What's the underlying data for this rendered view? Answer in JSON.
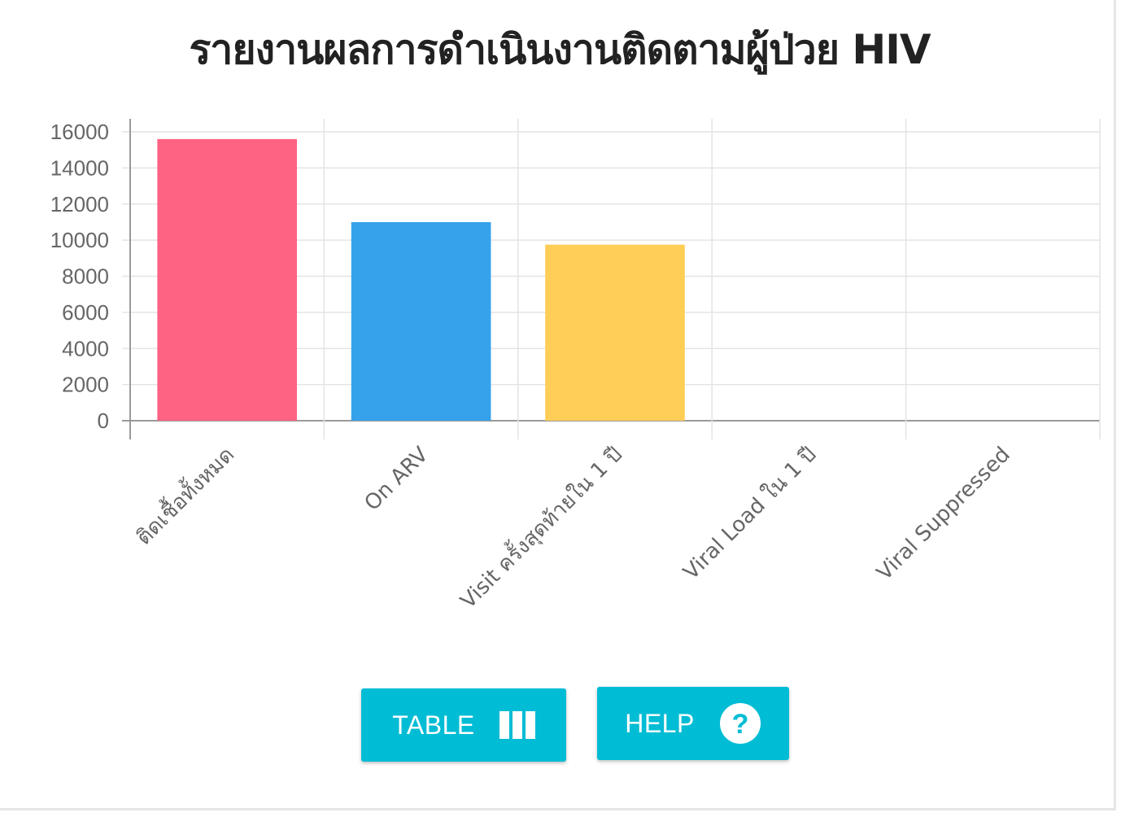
{
  "title": "รายงานผลการดำเนินงานติดตามผู้ป่วย HIV",
  "buttons": {
    "table_label": "TABLE",
    "table_icon": "view-column-icon",
    "help_label": "HELP",
    "help_icon": "help-circle-icon"
  },
  "colors": {
    "accent": "#00bcd4"
  },
  "chart_data": {
    "type": "bar",
    "title": "รายงานผลการดำเนินงานติดตามผู้ป่วย HIV",
    "xlabel": "",
    "ylabel": "",
    "categories": [
      "ติดเชื้อทั้งหมด",
      "On ARV",
      "Visit ครั้งสุดท้ายใน 1 ปี",
      "Viral Load ใน 1 ปี",
      "Viral Suppressed"
    ],
    "values": [
      15600,
      11000,
      9750,
      0,
      0
    ],
    "colors": [
      "#ff6384",
      "#36a2eb",
      "#ffce56",
      "#4bc0c0",
      "#9966ff"
    ],
    "ylim": [
      0,
      16000
    ],
    "yticks": [
      0,
      2000,
      4000,
      6000,
      8000,
      10000,
      12000,
      14000,
      16000
    ],
    "grid": true,
    "legend": "none"
  }
}
